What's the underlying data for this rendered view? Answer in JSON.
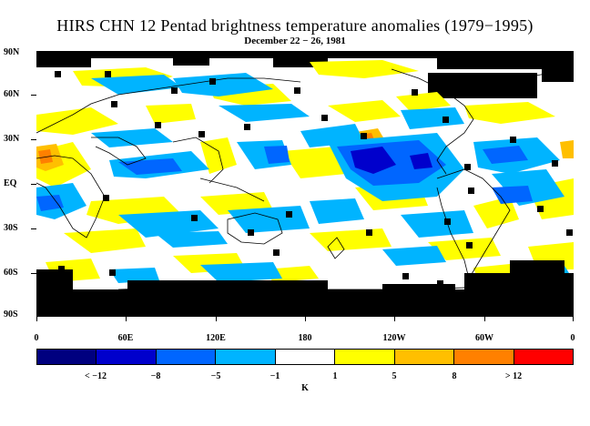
{
  "header": {
    "title": "HIRS CHN 12 Pentad brightness temperature anomalies (1979−1995)",
    "subtitle": "December 22 − 26, 1981"
  },
  "map": {
    "lat_labels": [
      "90N",
      "60N",
      "30N",
      "EQ",
      "30S",
      "60S",
      "90S"
    ],
    "lon_labels": [
      "0",
      "60E",
      "120E",
      "180",
      "120W",
      "60W",
      "0"
    ],
    "colors": {
      "missing": "#000000",
      "coast": "#000000",
      "background": "#ffffff"
    }
  },
  "legend": {
    "swatch_colors": [
      "#00007f",
      "#0000cc",
      "#0066ff",
      "#00b4ff",
      "#ffffff",
      "#ffff00",
      "#ffbf00",
      "#ff8000",
      "#ff0000"
    ],
    "labels": [
      "< −12",
      "−8",
      "−5",
      "−1",
      "1",
      "5",
      "8",
      "> 12"
    ],
    "unit": "K"
  }
}
